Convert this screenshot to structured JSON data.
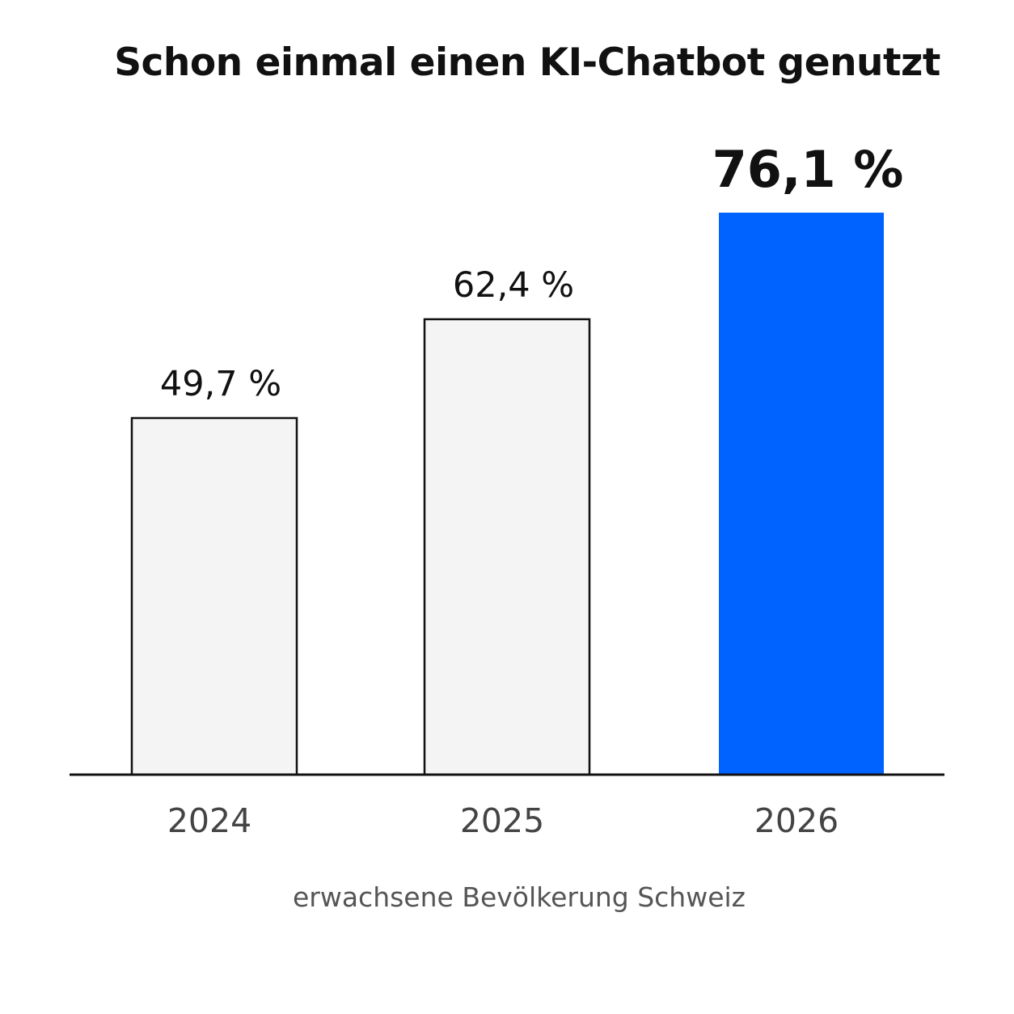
{
  "chart_data": {
    "type": "bar",
    "title": "Schon einmal einen KI-Chatbot genutzt",
    "caption": "erwachsene Bevölkerung Schweiz",
    "categories": [
      "2024",
      "2025",
      "2026"
    ],
    "values": [
      49.7,
      62.4,
      76.1
    ],
    "value_labels": [
      "49,7 %",
      "62,4 %",
      "76,1 %"
    ],
    "highlight_index": 2,
    "ylim": [
      0,
      100
    ],
    "grid": false,
    "legend": "none",
    "colors": {
      "bar": "#f4f4f4",
      "bar_outline": "#111111",
      "highlight": "#0062ff",
      "axis": "#111111",
      "label": "#111111",
      "tick": "#444444"
    }
  }
}
